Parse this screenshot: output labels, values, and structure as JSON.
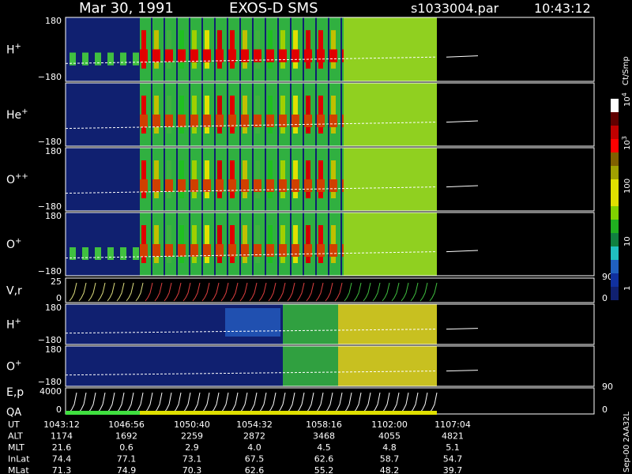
{
  "header": {
    "date": "Mar 30, 1991",
    "instrument": "EXOS-D SMS",
    "file": "s1033004.par",
    "time": "10:43:12"
  },
  "panels": [
    {
      "label": "H",
      "sup": "+",
      "ticks": [
        "180",
        "−180"
      ]
    },
    {
      "label": "He",
      "sup": "+",
      "ticks": [
        "−180"
      ]
    },
    {
      "label": "O",
      "sup": "++",
      "ticks": [
        "180",
        "−180"
      ]
    },
    {
      "label": "O",
      "sup": "+",
      "ticks": [
        "180",
        "−180"
      ]
    },
    {
      "label": "V,r",
      "ticks": [
        "25",
        "0"
      ],
      "right_ticks": [
        "90",
        "0"
      ]
    },
    {
      "label": "H",
      "sup": "+",
      "ticks": [
        "180",
        "−180"
      ]
    },
    {
      "label": "O",
      "sup": "+",
      "ticks": [
        "180",
        "−180"
      ]
    },
    {
      "label": "E,p",
      "label2": "QA",
      "ticks": [
        "4000",
        "0"
      ],
      "right_ticks": [
        "90",
        "0"
      ]
    }
  ],
  "colorbar": {
    "unit": "Ct/Smp",
    "labels": [
      {
        "base": "10",
        "exp": "4"
      },
      {
        "base": "10",
        "exp": "3"
      },
      {
        "base": "100"
      },
      {
        "base": "10"
      },
      {
        "base": "1"
      }
    ]
  },
  "table": {
    "rows": [
      {
        "name": "UT",
        "values": [
          "1043:12",
          "1046:56",
          "1050:40",
          "1054:32",
          "1058:16",
          "1102:00",
          "1107:04"
        ]
      },
      {
        "name": "ALT",
        "values": [
          "1174",
          "1692",
          "2259",
          "2872",
          "3468",
          "4055",
          "4821"
        ]
      },
      {
        "name": "MLT",
        "values": [
          "21.6",
          "0.6",
          "2.9",
          "4.0",
          "4.5",
          "4.8",
          "5.1"
        ]
      },
      {
        "name": "InLat",
        "values": [
          "74.4",
          "77.1",
          "73.1",
          "67.5",
          "62.6",
          "58.7",
          "54.7"
        ]
      },
      {
        "name": "MLat",
        "values": [
          "71.3",
          "74.9",
          "70.3",
          "62.6",
          "55.2",
          "48.2",
          "39.7"
        ]
      }
    ]
  },
  "footer": "Sep-00 2AA32L"
}
